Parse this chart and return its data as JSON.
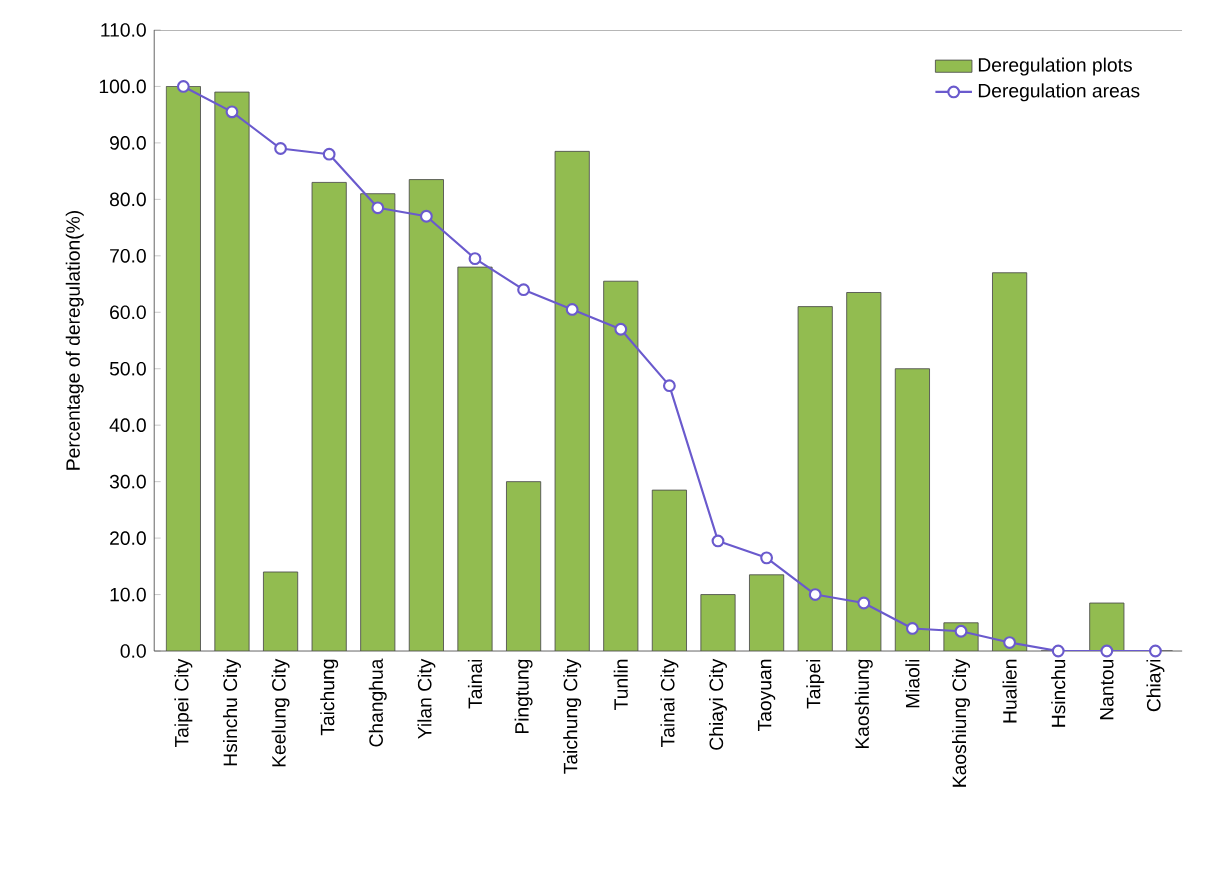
{
  "chart_data": {
    "type": "bar",
    "ylabel": "Percentage of deregulation(%)",
    "categories": [
      "Taipei City",
      "Hsinchu City",
      "Keelung City",
      "Taichung",
      "Changhua",
      "Yilan City",
      "Tainai",
      "Pingtung",
      "Taichung City",
      "Tunlin",
      "Tainai City",
      "Chiayi City",
      "Taoyuan",
      "Taipei",
      "Kaoshiung",
      "Miaoli",
      "Kaoshiung City",
      "Hualien",
      "Hsinchu",
      "Nantou",
      "Chiayi"
    ],
    "series": [
      {
        "name": "Deregulation plots",
        "color": "#92bc50",
        "values": [
          100,
          99,
          14,
          83,
          81,
          83.5,
          68,
          30,
          88.5,
          65.5,
          28.5,
          10,
          13.5,
          61,
          63.5,
          50,
          5,
          67,
          0,
          8.5,
          0
        ]
      },
      {
        "name": "Deregulation areas",
        "type": "line",
        "color": "#6a5acd",
        "marker": "circle",
        "values": [
          100,
          95.5,
          89,
          88,
          78.5,
          77,
          69.5,
          64,
          60.5,
          57,
          47,
          19.5,
          16.5,
          10,
          8.5,
          4,
          3.5,
          1.5,
          0,
          0,
          0
        ]
      }
    ],
    "ylim": [
      0,
      110
    ],
    "yticks": [
      {
        "value": 0,
        "label": "0.0"
      },
      {
        "value": 10,
        "label": "10.0"
      },
      {
        "value": 20,
        "label": "20.0"
      },
      {
        "value": 30,
        "label": "30.0"
      },
      {
        "value": 40,
        "label": "40.0"
      },
      {
        "value": 50,
        "label": "50.0"
      },
      {
        "value": 60,
        "label": "60.0"
      },
      {
        "value": 70,
        "label": "70.0"
      },
      {
        "value": 80,
        "label": "80.0"
      },
      {
        "value": 90,
        "label": "90.0"
      },
      {
        "value": 100,
        "label": "100.0"
      },
      {
        "value": 110,
        "label": "110.0"
      }
    ],
    "legend": "top right",
    "grid": false
  }
}
